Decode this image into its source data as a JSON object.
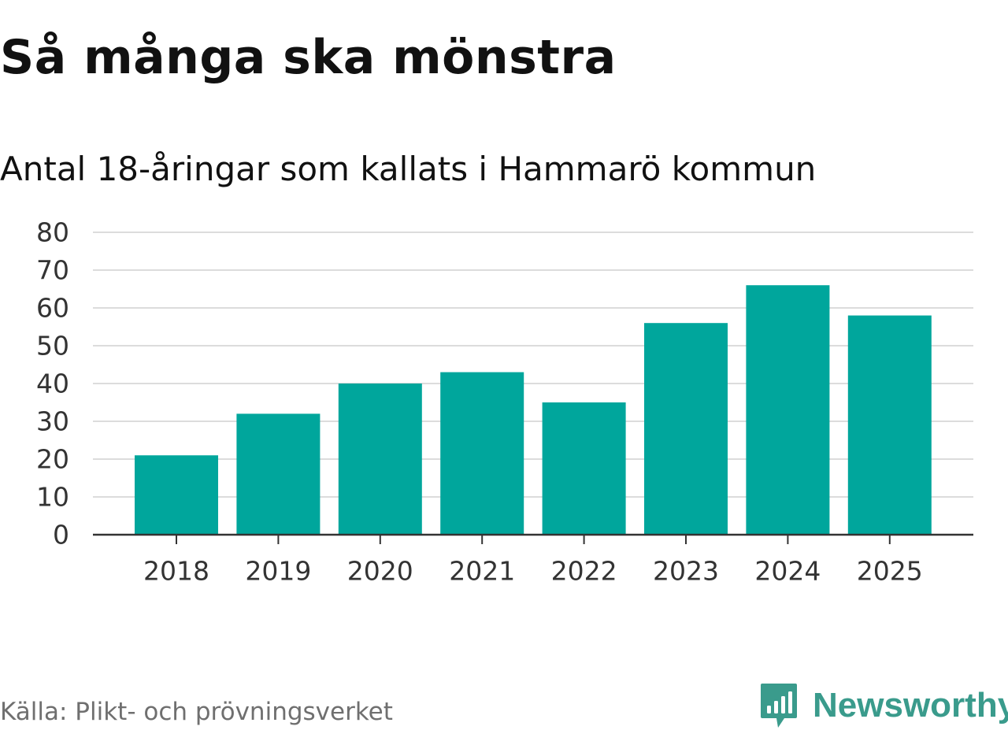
{
  "title": "Så många ska mönstra",
  "subtitle": "Antal 18-åringar som kallats i Hammarö kommun",
  "source": "Källa: Plikt- och prövningsverket",
  "brand": {
    "name": "Newsworthy",
    "icon": "newsworthy-logo-icon",
    "color": "#3a9b8c"
  },
  "colors": {
    "bar": "#00a69c",
    "grid": "#dcdcdc",
    "axis": "#333333"
  },
  "chart_data": {
    "type": "bar",
    "title": "Så många ska mönstra",
    "subtitle": "Antal 18-åringar som kallats i Hammarö kommun",
    "xlabel": "",
    "ylabel": "",
    "categories": [
      "2018",
      "2019",
      "2020",
      "2021",
      "2022",
      "2023",
      "2024",
      "2025"
    ],
    "values": [
      21,
      32,
      40,
      43,
      35,
      56,
      66,
      58
    ],
    "ylim": [
      0,
      80
    ],
    "yticks": [
      0,
      10,
      20,
      30,
      40,
      50,
      60,
      70,
      80
    ],
    "grid": true,
    "legend": "none"
  }
}
